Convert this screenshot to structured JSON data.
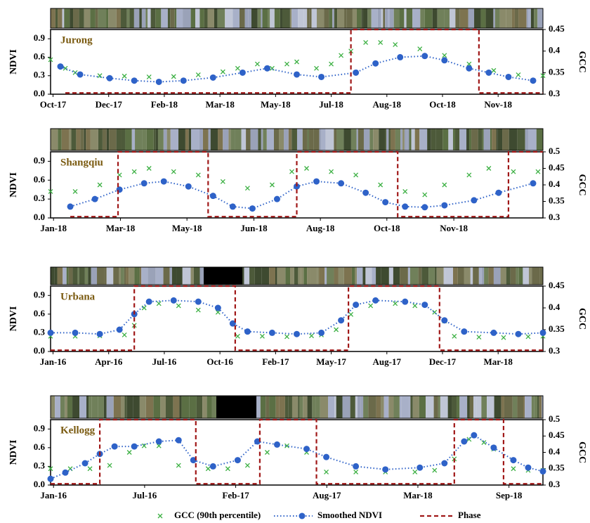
{
  "chart_data": [
    {
      "type": "line",
      "title": "Jurong",
      "y_label": "NDVI",
      "y2_label": "GCC",
      "xlim": [
        0,
        100
      ],
      "ylim": [
        0,
        1.05
      ],
      "y2lim": [
        0.3,
        0.45
      ],
      "xticks": [
        {
          "value": 0.5,
          "label": "Oct-17"
        },
        {
          "value": 11.8,
          "label": "Dec-17"
        },
        {
          "value": 23.1,
          "label": "Feb-18"
        },
        {
          "value": 34.4,
          "label": "Mar-18"
        },
        {
          "value": 45.7,
          "label": "May-18"
        },
        {
          "value": 57,
          "label": "Jul-18"
        },
        {
          "value": 68.3,
          "label": "Aug-18"
        },
        {
          "value": 79.6,
          "label": "Oct-18"
        },
        {
          "value": 90.9,
          "label": "Nov-18"
        }
      ],
      "yticks": [
        {
          "value": 0,
          "label": "0.0"
        },
        0.3,
        0.6,
        0.9
      ],
      "y2ticks": [
        0.3,
        0.35,
        0.4,
        0.45
      ],
      "series": [
        {
          "name": "GCC (90th percentile)",
          "color": "#3cb043",
          "marker": "x",
          "axis": "y2",
          "x": [
            0,
            3,
            5,
            10,
            15,
            20,
            25,
            30,
            35,
            38,
            42,
            45,
            48,
            50,
            54,
            57,
            59,
            61,
            64,
            67,
            70,
            75,
            80,
            85,
            90,
            95,
            100
          ],
          "values": [
            0.38,
            0.36,
            0.35,
            0.343,
            0.342,
            0.34,
            0.341,
            0.345,
            0.352,
            0.36,
            0.37,
            0.36,
            0.37,
            0.375,
            0.36,
            0.37,
            0.39,
            0.4,
            0.42,
            0.42,
            0.415,
            0.405,
            0.39,
            0.37,
            0.355,
            0.345,
            0.343
          ]
        },
        {
          "name": "Smoothed NDVI",
          "color": "#2e62c8",
          "marker": "dots",
          "axis": "y",
          "x": [
            2,
            6,
            12,
            17,
            22,
            27,
            33,
            39,
            44,
            50,
            55,
            62,
            66,
            71,
            76,
            80,
            85,
            89,
            93,
            98
          ],
          "values": [
            0.45,
            0.32,
            0.26,
            0.22,
            0.2,
            0.22,
            0.27,
            0.35,
            0.42,
            0.32,
            0.28,
            0.35,
            0.5,
            0.6,
            0.62,
            0.55,
            0.42,
            0.35,
            0.28,
            0.22
          ]
        },
        {
          "name": "Phase",
          "color": "#a01818",
          "marker": "dashed",
          "axis": "y",
          "x": [
            3,
            61,
            61,
            87,
            87,
            100
          ],
          "values": [
            0.02,
            0.02,
            1.05,
            1.05,
            0.02,
            0.02
          ]
        }
      ]
    },
    {
      "type": "line",
      "title": "Shangqiu",
      "y_label": "NDVI",
      "y2_label": "GCC",
      "xlim": [
        0,
        100
      ],
      "ylim": [
        0,
        1.05
      ],
      "y2lim": [
        0.3,
        0.5
      ],
      "xticks": [
        {
          "value": 0.6,
          "label": "Jan-18"
        },
        {
          "value": 14.2,
          "label": "Mar-18"
        },
        {
          "value": 27.7,
          "label": "May-18"
        },
        {
          "value": 41.3,
          "label": "Jun-18"
        },
        {
          "value": 54.8,
          "label": "Aug-18"
        },
        {
          "value": 68.3,
          "label": "Oct-18"
        },
        {
          "value": 81.9,
          "label": "Nov-18"
        }
      ],
      "yticks": [
        {
          "value": 0,
          "label": "0.0"
        },
        0.3,
        0.6,
        0.9
      ],
      "y2ticks": [
        0.3,
        0.35,
        0.4,
        0.45,
        0.5
      ],
      "series": [
        {
          "name": "GCC (90th percentile)",
          "color": "#3cb043",
          "marker": "x",
          "axis": "y2",
          "x": [
            0,
            5,
            10,
            14,
            17,
            20,
            25,
            30,
            35,
            40,
            45,
            49,
            52,
            57,
            62,
            67,
            72,
            76,
            80,
            85,
            89,
            94,
            99
          ],
          "values": [
            0.38,
            0.38,
            0.4,
            0.43,
            0.44,
            0.45,
            0.44,
            0.43,
            0.41,
            0.39,
            0.4,
            0.44,
            0.45,
            0.44,
            0.43,
            0.4,
            0.38,
            0.37,
            0.4,
            0.43,
            0.45,
            0.44,
            0.44
          ]
        },
        {
          "name": "Smoothed NDVI",
          "color": "#2e62c8",
          "marker": "dots",
          "axis": "y",
          "x": [
            4,
            9,
            14,
            19,
            23,
            28,
            33,
            37,
            41,
            46,
            50,
            54,
            59,
            64,
            68,
            72,
            76,
            80,
            86,
            91,
            98
          ],
          "values": [
            0.18,
            0.3,
            0.45,
            0.55,
            0.58,
            0.5,
            0.35,
            0.18,
            0.15,
            0.3,
            0.5,
            0.58,
            0.55,
            0.4,
            0.25,
            0.18,
            0.17,
            0.2,
            0.28,
            0.4,
            0.55
          ]
        },
        {
          "name": "Phase",
          "color": "#a01818",
          "marker": "dashed",
          "axis": "y",
          "x": [
            4,
            13.7,
            13.7,
            32,
            32,
            50,
            50,
            70.5,
            70.5,
            93,
            93,
            100
          ],
          "values": [
            0.02,
            0.02,
            1.05,
            1.05,
            0.02,
            0.02,
            1.05,
            1.05,
            0.02,
            0.02,
            1.05,
            1.05
          ]
        }
      ]
    },
    {
      "type": "line",
      "title": "Urbana",
      "y_label": "NDVI",
      "y2_label": "GCC",
      "xlim": [
        0,
        100
      ],
      "ylim": [
        0,
        1.05
      ],
      "y2lim": [
        0.3,
        0.45
      ],
      "xticks": [
        {
          "value": 0.5,
          "label": "Jan-16"
        },
        {
          "value": 11.8,
          "label": "Apr-16"
        },
        {
          "value": 23.1,
          "label": "Jul-16"
        },
        {
          "value": 34.4,
          "label": "Oct-16"
        },
        {
          "value": 45.7,
          "label": "Feb-17"
        },
        {
          "value": 57,
          "label": "May-17"
        },
        {
          "value": 68.3,
          "label": "Aug-17"
        },
        {
          "value": 79.6,
          "label": "Dec-17"
        },
        {
          "value": 90.9,
          "label": "Mar-18"
        }
      ],
      "yticks": [
        {
          "value": 0,
          "label": "0.0"
        },
        0.3,
        0.6,
        0.9
      ],
      "y2ticks": [
        0.3,
        0.35,
        0.4,
        0.45
      ],
      "series": [
        {
          "name": "GCC (90th percentile)",
          "color": "#3cb043",
          "marker": "x",
          "axis": "y2",
          "x": [
            0,
            5,
            10,
            15,
            17,
            19,
            22,
            26,
            30,
            34,
            38,
            43,
            48,
            53,
            55,
            58,
            61,
            65,
            70,
            74,
            78,
            80,
            82,
            87,
            92,
            97,
            100
          ],
          "values": [
            0.335,
            0.335,
            0.336,
            0.338,
            0.36,
            0.4,
            0.41,
            0.405,
            0.395,
            0.39,
            0.335,
            0.335,
            0.334,
            0.336,
            0.338,
            0.35,
            0.385,
            0.405,
            0.41,
            0.405,
            0.39,
            0.37,
            0.335,
            0.333,
            0.332,
            0.334,
            0.335
          ]
        },
        {
          "name": "Smoothed NDVI",
          "color": "#2e62c8",
          "marker": "dots",
          "axis": "y",
          "x": [
            0,
            5,
            10,
            14,
            17,
            20,
            25,
            30,
            34,
            37,
            40,
            45,
            50,
            55,
            59,
            62,
            66,
            72,
            76,
            80,
            84,
            90,
            95,
            100
          ],
          "values": [
            0.3,
            0.3,
            0.28,
            0.35,
            0.6,
            0.8,
            0.82,
            0.8,
            0.7,
            0.45,
            0.32,
            0.3,
            0.28,
            0.3,
            0.5,
            0.75,
            0.82,
            0.8,
            0.75,
            0.5,
            0.32,
            0.3,
            0.28,
            0.3
          ]
        },
        {
          "name": "Phase",
          "color": "#a01818",
          "marker": "dashed",
          "axis": "y",
          "x": [
            0,
            17,
            17,
            37.5,
            37.5,
            60.5,
            60.5,
            79,
            79,
            100
          ],
          "values": [
            0.02,
            0.02,
            1.05,
            1.05,
            0.02,
            0.02,
            1.05,
            1.05,
            0.02,
            0.02
          ]
        }
      ]
    },
    {
      "type": "line",
      "title": "Kellogg",
      "y_label": "NDVI",
      "y2_label": "GCC",
      "xlim": [
        0,
        100
      ],
      "ylim": [
        0,
        1.05
      ],
      "y2lim": [
        0.3,
        0.5
      ],
      "xticks": [
        {
          "value": 0.6,
          "label": "Jan-16"
        },
        {
          "value": 19.1,
          "label": "Jul-16"
        },
        {
          "value": 37.6,
          "label": "Feb-17"
        },
        {
          "value": 56.1,
          "label": "Aug-17"
        },
        {
          "value": 74.6,
          "label": "Mar-18"
        },
        {
          "value": 93.1,
          "label": "Sep-18"
        }
      ],
      "yticks": [
        {
          "value": 0,
          "label": "0.0"
        },
        0.3,
        0.6,
        0.9
      ],
      "y2ticks": [
        0.3,
        0.35,
        0.4,
        0.45,
        0.5
      ],
      "series": [
        {
          "name": "GCC (90th percentile)",
          "color": "#3cb043",
          "marker": "x",
          "axis": "y2",
          "x": [
            0,
            4,
            8,
            12,
            16,
            19,
            22,
            26,
            32,
            36,
            40,
            44,
            48,
            52,
            56,
            62,
            68,
            74,
            78,
            82,
            85,
            88,
            90,
            94,
            97,
            100
          ],
          "values": [
            0.35,
            0.35,
            0.35,
            0.36,
            0.4,
            0.42,
            0.42,
            0.36,
            0.35,
            0.35,
            0.36,
            0.4,
            0.42,
            0.4,
            0.34,
            0.34,
            0.34,
            0.34,
            0.345,
            0.38,
            0.44,
            0.43,
            0.41,
            0.35,
            0.345,
            0.345
          ]
        },
        {
          "name": "Smoothed NDVI",
          "color": "#2e62c8",
          "marker": "dots",
          "axis": "y",
          "x": [
            0,
            3,
            7,
            10,
            13,
            17,
            22,
            26,
            29,
            33,
            38,
            42,
            46,
            52,
            56,
            62,
            68,
            75,
            80,
            84,
            86,
            90,
            94,
            97,
            100
          ],
          "values": [
            0.1,
            0.2,
            0.35,
            0.5,
            0.62,
            0.62,
            0.7,
            0.72,
            0.4,
            0.3,
            0.4,
            0.7,
            0.65,
            0.58,
            0.45,
            0.3,
            0.25,
            0.28,
            0.35,
            0.7,
            0.8,
            0.6,
            0.4,
            0.28,
            0.22
          ]
        },
        {
          "name": "Phase",
          "color": "#a01818",
          "marker": "dashed",
          "axis": "y",
          "x": [
            0,
            10,
            10,
            29.5,
            29.5,
            42.5,
            42.5,
            54,
            54,
            82,
            82,
            92,
            92,
            100
          ],
          "values": [
            0.02,
            0.02,
            1.05,
            1.05,
            0.02,
            0.02,
            1.05,
            1.05,
            0.02,
            0.02,
            1.05,
            1.05,
            0.02,
            0.02
          ]
        }
      ]
    }
  ]
}
